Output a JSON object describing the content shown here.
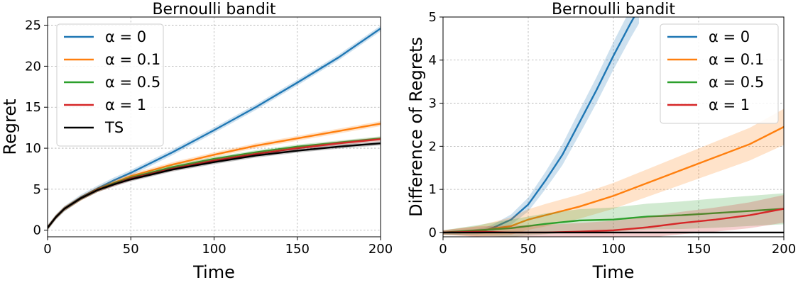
{
  "chart_data": [
    {
      "type": "line",
      "title": "Bernoulli bandit",
      "xlabel": "Time",
      "ylabel": "Regret",
      "xlim": [
        0,
        200
      ],
      "ylim": [
        -0.8,
        26
      ],
      "xticks": [
        0,
        50,
        100,
        150,
        200
      ],
      "yticks": [
        0,
        5,
        10,
        15,
        20,
        25
      ],
      "grid": true,
      "legend_position": "upper-left",
      "series": [
        {
          "name": "α = 0",
          "color": "#1f77b4",
          "x": [
            0,
            5,
            10,
            20,
            30,
            40,
            50,
            75,
            100,
            125,
            150,
            175,
            200
          ],
          "y": [
            0.3,
            1.6,
            2.6,
            4.0,
            5.1,
            6.1,
            7.0,
            9.5,
            12.2,
            15.0,
            18.0,
            21.1,
            24.6
          ],
          "band": 0.35
        },
        {
          "name": "α = 0.1",
          "color": "#ff7f0e",
          "x": [
            0,
            5,
            10,
            20,
            30,
            40,
            50,
            75,
            100,
            125,
            150,
            175,
            200
          ],
          "y": [
            0.3,
            1.6,
            2.6,
            3.9,
            5.0,
            5.8,
            6.6,
            8.0,
            9.2,
            10.3,
            11.2,
            12.1,
            13.0
          ],
          "band": 0.3
        },
        {
          "name": "α = 0.5",
          "color": "#2ca02c",
          "x": [
            0,
            5,
            10,
            20,
            30,
            40,
            50,
            75,
            100,
            125,
            150,
            175,
            200
          ],
          "y": [
            0.3,
            1.6,
            2.6,
            3.9,
            4.9,
            5.7,
            6.4,
            7.7,
            8.7,
            9.5,
            10.2,
            10.7,
            11.2
          ],
          "band": 0.25
        },
        {
          "name": "α = 1",
          "color": "#d62728",
          "x": [
            0,
            5,
            10,
            20,
            30,
            40,
            50,
            75,
            100,
            125,
            150,
            175,
            200
          ],
          "y": [
            0.3,
            1.6,
            2.6,
            3.9,
            4.9,
            5.6,
            6.3,
            7.5,
            8.5,
            9.3,
            10.0,
            10.6,
            11.1
          ],
          "band": 0.25
        },
        {
          "name": "TS",
          "color": "#000000",
          "x": [
            0,
            5,
            10,
            20,
            30,
            40,
            50,
            75,
            100,
            125,
            150,
            175,
            200
          ],
          "y": [
            0.3,
            1.6,
            2.6,
            3.9,
            4.9,
            5.6,
            6.2,
            7.4,
            8.3,
            9.1,
            9.7,
            10.2,
            10.6
          ],
          "band": 0.25
        }
      ]
    },
    {
      "type": "line",
      "title": "Bernoulli bandit",
      "xlabel": "Time",
      "ylabel": "Difference of Regrets",
      "xlim": [
        0,
        200
      ],
      "ylim": [
        -0.1,
        5
      ],
      "xticks": [
        0,
        50,
        100,
        150,
        200
      ],
      "yticks": [
        0,
        1,
        2,
        3,
        4,
        5
      ],
      "grid": true,
      "legend_position": "upper-right",
      "series": [
        {
          "name": "α = 0",
          "color": "#1f77b4",
          "x": [
            0,
            10,
            20,
            25,
            30,
            40,
            50,
            60,
            70,
            80,
            90,
            100,
            110,
            115
          ],
          "y": [
            0.0,
            0.0,
            0.02,
            0.05,
            0.12,
            0.3,
            0.65,
            1.2,
            1.8,
            2.55,
            3.3,
            4.1,
            4.85,
            5.2
          ],
          "band": [
            0.05,
            0.05,
            0.06,
            0.07,
            0.08,
            0.12,
            0.16,
            0.2,
            0.24,
            0.28,
            0.3,
            0.32,
            0.34,
            0.35
          ]
        },
        {
          "name": "α = 0.1",
          "color": "#ff7f0e",
          "x": [
            0,
            20,
            40,
            50,
            60,
            80,
            100,
            120,
            140,
            160,
            180,
            200
          ],
          "y": [
            0.0,
            0.03,
            0.15,
            0.3,
            0.4,
            0.6,
            0.85,
            1.15,
            1.45,
            1.75,
            2.05,
            2.45
          ],
          "band": [
            0.05,
            0.12,
            0.2,
            0.24,
            0.26,
            0.28,
            0.3,
            0.32,
            0.34,
            0.36,
            0.38,
            0.42
          ]
        },
        {
          "name": "α = 0.5",
          "color": "#2ca02c",
          "x": [
            0,
            20,
            40,
            60,
            80,
            100,
            120,
            140,
            160,
            180,
            200
          ],
          "y": [
            0.0,
            0.05,
            0.1,
            0.2,
            0.28,
            0.3,
            0.37,
            0.4,
            0.45,
            0.5,
            0.55
          ],
          "band": [
            0.05,
            0.12,
            0.2,
            0.24,
            0.26,
            0.28,
            0.3,
            0.32,
            0.34,
            0.35,
            0.36
          ]
        },
        {
          "name": "α = 1",
          "color": "#d62728",
          "x": [
            0,
            20,
            40,
            60,
            80,
            100,
            120,
            140,
            160,
            180,
            200
          ],
          "y": [
            0.0,
            0.02,
            0.0,
            0.0,
            0.02,
            0.05,
            0.12,
            0.22,
            0.3,
            0.4,
            0.55
          ],
          "band": [
            0.05,
            0.12,
            0.16,
            0.18,
            0.2,
            0.22,
            0.24,
            0.26,
            0.28,
            0.3,
            0.32
          ]
        },
        {
          "name": "TS",
          "color": "#000000",
          "show_in_legend": false,
          "x": [
            0,
            200
          ],
          "y": [
            0,
            0
          ],
          "band": 0
        }
      ]
    }
  ]
}
